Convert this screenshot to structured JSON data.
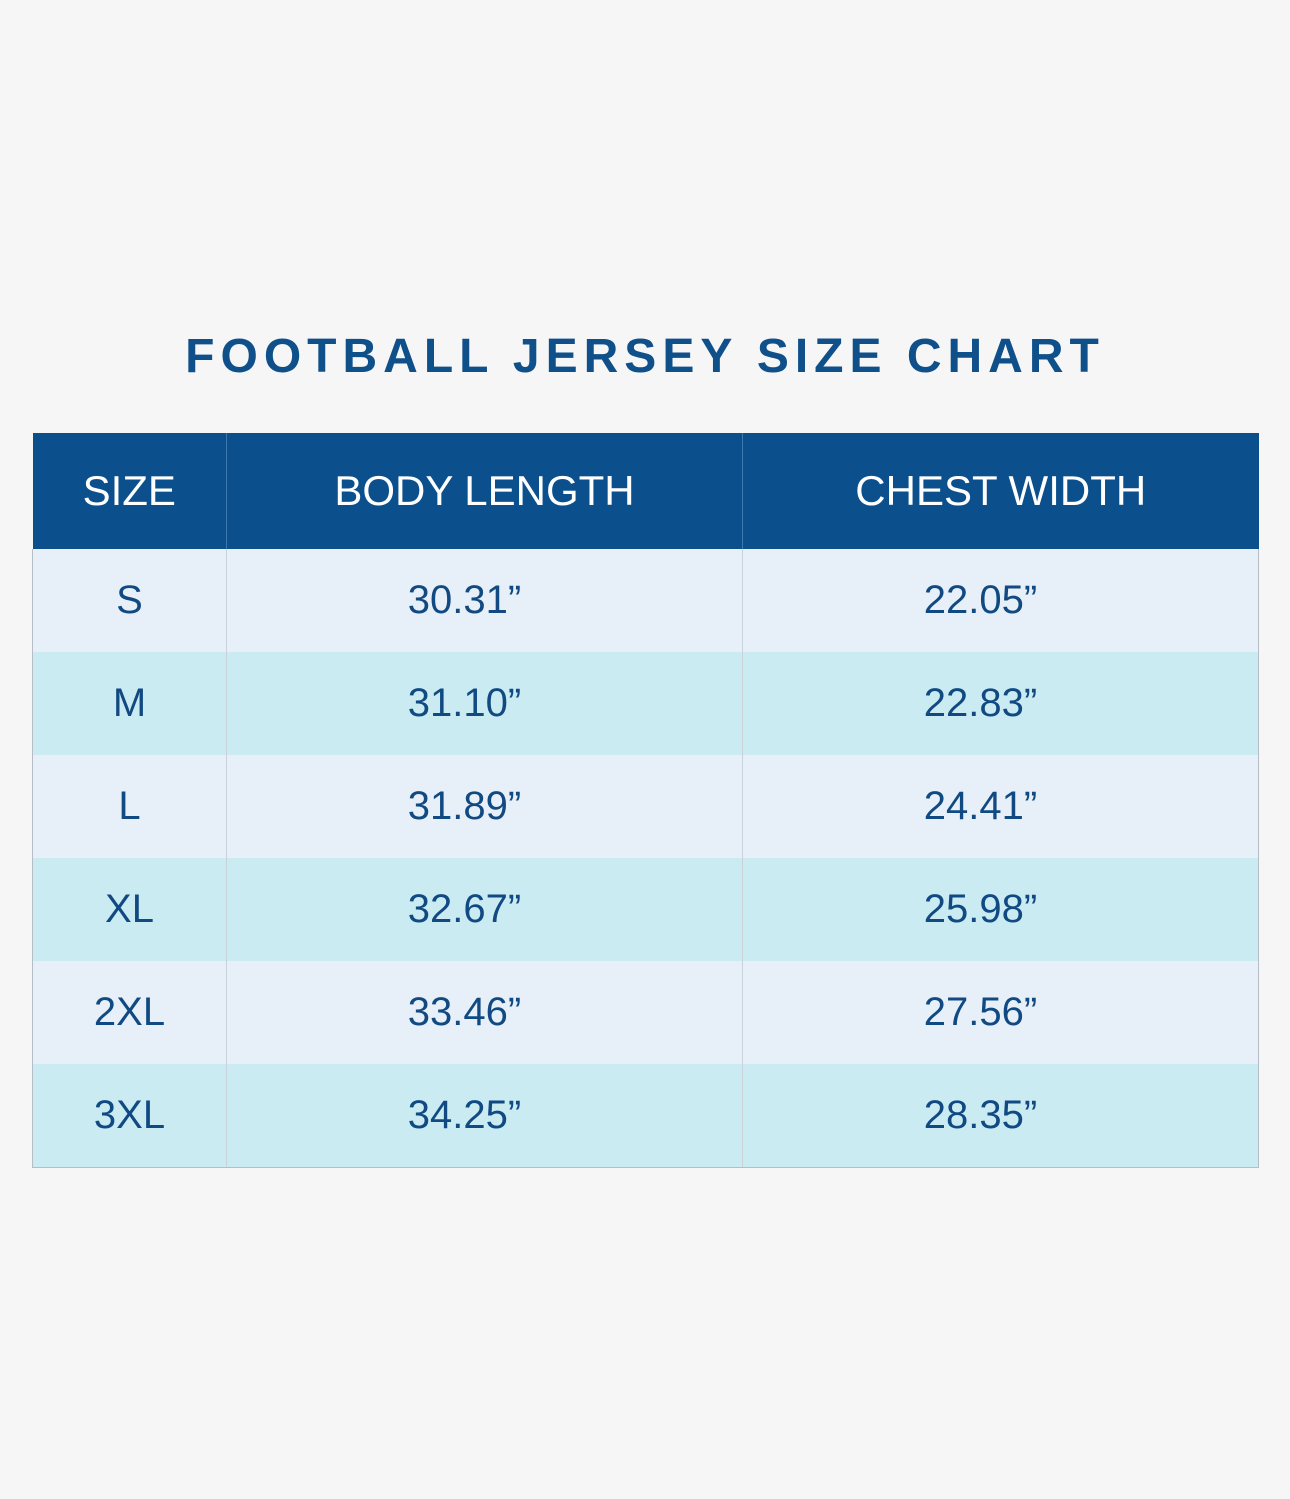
{
  "title": "FOOTBALL JERSEY SIZE CHART",
  "table": {
    "headers": [
      "SIZE",
      "BODY LENGTH",
      "CHEST WIDTH"
    ],
    "rows": [
      [
        "S",
        "30.31”",
        "22.05”"
      ],
      [
        "M",
        "31.10”",
        "22.83”"
      ],
      [
        "L",
        "31.89”",
        "24.41”"
      ],
      [
        "XL",
        "32.67”",
        "25.98”"
      ],
      [
        "2XL",
        "33.46”",
        "27.56”"
      ],
      [
        "3XL",
        "34.25”",
        "28.35”"
      ]
    ]
  },
  "colors": {
    "title": "#0f4f8a",
    "header_bg": "#0b4f8c",
    "row_light": "#e7f0f8",
    "row_cyan": "#cbebf3",
    "cell_text": "#114a82",
    "page_bg": "#f6f6f6"
  }
}
